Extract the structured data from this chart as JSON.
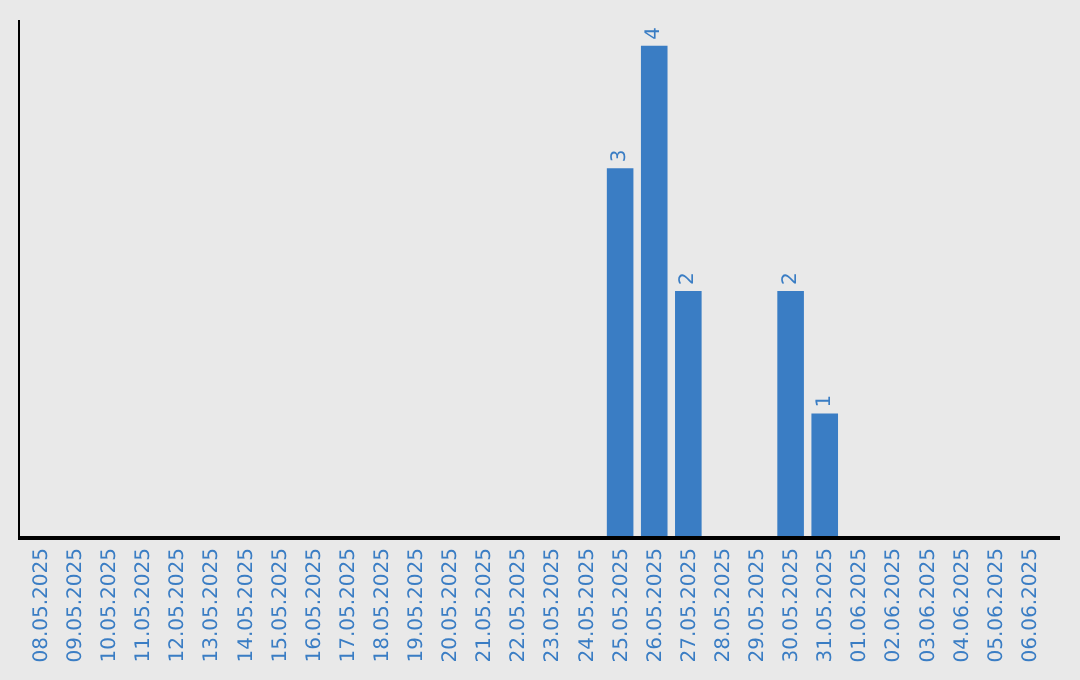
{
  "chart_data": {
    "type": "bar",
    "categories": [
      "08.05.2025",
      "09.05.2025",
      "10.05.2025",
      "11.05.2025",
      "12.05.2025",
      "13.05.2025",
      "14.05.2025",
      "15.05.2025",
      "16.05.2025",
      "17.05.2025",
      "18.05.2025",
      "19.05.2025",
      "20.05.2025",
      "21.05.2025",
      "22.05.2025",
      "23.05.2025",
      "24.05.2025",
      "25.05.2025",
      "26.05.2025",
      "27.05.2025",
      "28.05.2025",
      "29.05.2025",
      "30.05.2025",
      "31.05.2025",
      "01.06.2025",
      "02.06.2025",
      "03.06.2025",
      "04.06.2025",
      "05.06.2025",
      "06.06.2025"
    ],
    "values": [
      null,
      null,
      null,
      null,
      null,
      null,
      null,
      null,
      null,
      null,
      null,
      null,
      null,
      null,
      null,
      null,
      null,
      3,
      4,
      2,
      null,
      null,
      2,
      1,
      null,
      null,
      null,
      null,
      null,
      null
    ],
    "data_labels": true,
    "color": "#3a7dc4",
    "tick_labels": "x",
    "grid": false
  }
}
